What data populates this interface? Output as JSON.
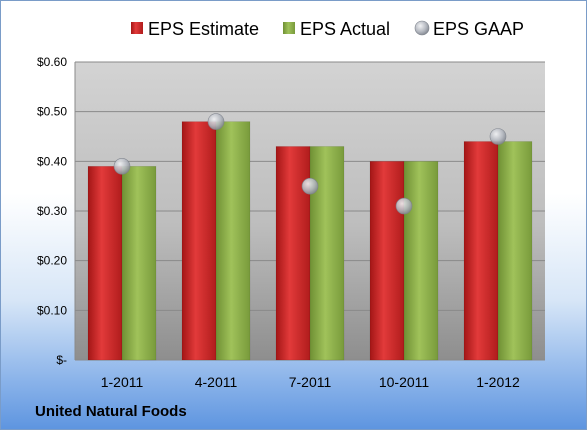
{
  "chart_data": {
    "type": "bar",
    "categories": [
      "1-2011",
      "4-2011",
      "7-2011",
      "10-2011",
      "1-2012"
    ],
    "series": [
      {
        "name": "EPS Estimate",
        "type": "bar",
        "color": "#d42a2a",
        "values": [
          0.39,
          0.48,
          0.43,
          0.4,
          0.44
        ]
      },
      {
        "name": "EPS Actual",
        "type": "bar",
        "color": "#8cb04a",
        "values": [
          0.39,
          0.48,
          0.43,
          0.4,
          0.44
        ]
      },
      {
        "name": "EPS GAAP",
        "type": "scatter",
        "color": "#b8bcc4",
        "values": [
          0.39,
          0.48,
          0.35,
          0.31,
          0.45
        ]
      }
    ],
    "yticks": [
      "$-",
      "$0.10",
      "$0.20",
      "$0.30",
      "$0.40",
      "$0.50",
      "$0.60"
    ],
    "ylim": [
      0,
      0.6
    ],
    "grid": true,
    "legend_position": "top"
  },
  "footer": {
    "company": "United Natural Foods"
  }
}
